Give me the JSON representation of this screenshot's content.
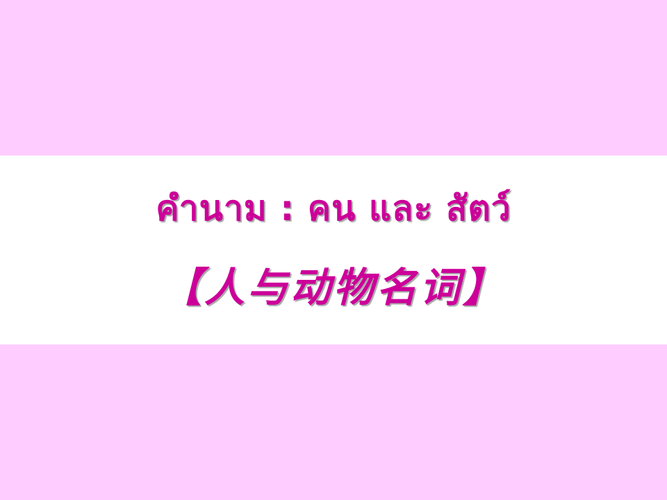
{
  "slide": {
    "title_thai": "คำนาม : คน และ สัตว์",
    "title_chinese": "【人与动物名词】"
  },
  "colors": {
    "background": "#FFCCFF",
    "title_band": "#FFFFFF",
    "title_text": "#CC0099"
  }
}
